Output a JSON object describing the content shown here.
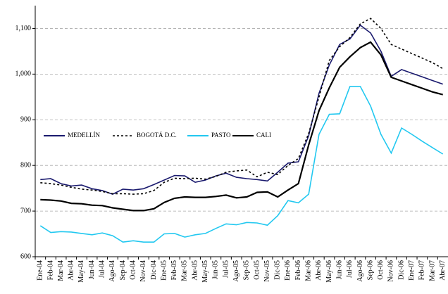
{
  "chart_data": {
    "type": "line",
    "categories": [
      "Ene-04",
      "Feb-04",
      "Mar-04",
      "Abr-04",
      "May-04",
      "Jun-04",
      "Jul-04",
      "Ago-04",
      "Sep-04",
      "Oct-04",
      "Nov-04",
      "Dic-04",
      "Ene-05",
      "Feb-05",
      "Mar-05",
      "Abr-05",
      "May-05",
      "Jun-05",
      "Jul-05",
      "Ago-05",
      "Sep-05",
      "Oct-05",
      "Nov-05",
      "Dic-05",
      "Ene-06",
      "Feb-06",
      "Mar-06",
      "Abr-06",
      "May-06",
      "Jun-06",
      "Jul-06",
      "Ago-06",
      "Sep-06",
      "Oct-06",
      "Nov-06",
      "Dic-06",
      "Ene-07",
      "Feb-07",
      "Mar-07",
      "Abr-07"
    ],
    "series": [
      {
        "name": "MEDELLÍN",
        "color": "#1a1a6e",
        "line_style": "solid",
        "values": [
          769,
          771,
          760,
          755,
          757,
          749,
          745,
          737,
          748,
          746,
          749,
          758,
          768,
          778,
          777,
          763,
          768,
          777,
          783,
          774,
          771,
          769,
          766,
          785,
          805,
          808,
          865,
          958,
          1020,
          1065,
          1077,
          1107,
          1090,
          1050,
          995,
          1010,
          1002,
          994,
          986,
          978
        ]
      },
      {
        "name": "BOGOTÁ D.C.",
        "color": "#000000",
        "line_style": "dashed",
        "values": [
          762,
          760,
          757,
          752,
          748,
          746,
          743,
          738,
          738,
          737,
          738,
          745,
          763,
          772,
          771,
          772,
          770,
          776,
          785,
          788,
          790,
          775,
          785,
          780,
          800,
          815,
          870,
          950,
          1030,
          1060,
          1080,
          1110,
          1122,
          1100,
          1065,
          1055,
          1045,
          1035,
          1025,
          1012
        ]
      },
      {
        "name": "PASTO",
        "color": "#22c8f0",
        "line_style": "solid",
        "values": [
          668,
          653,
          655,
          654,
          651,
          648,
          652,
          646,
          632,
          635,
          632,
          632,
          650,
          651,
          643,
          648,
          651,
          662,
          672,
          670,
          675,
          674,
          669,
          690,
          723,
          718,
          737,
          868,
          912,
          913,
          973,
          973,
          930,
          868,
          827,
          882,
          868,
          853,
          839,
          825
        ]
      },
      {
        "name": "CALI",
        "color": "#000000",
        "line_style": "solid",
        "values": [
          725,
          724,
          722,
          717,
          716,
          713,
          712,
          707,
          704,
          701,
          701,
          705,
          719,
          728,
          731,
          730,
          730,
          732,
          735,
          729,
          731,
          741,
          742,
          731,
          746,
          760,
          845,
          920,
          970,
          1015,
          1038,
          1058,
          1070,
          1042,
          993,
          985,
          977,
          969,
          961,
          955
        ]
      }
    ],
    "ylim": [
      600,
      1150
    ],
    "yticks": [
      600,
      700,
      800,
      900,
      {
        "value": 1000,
        "label": "1,000"
      },
      {
        "value": 1100,
        "label": "1,100"
      }
    ],
    "grid": true
  }
}
